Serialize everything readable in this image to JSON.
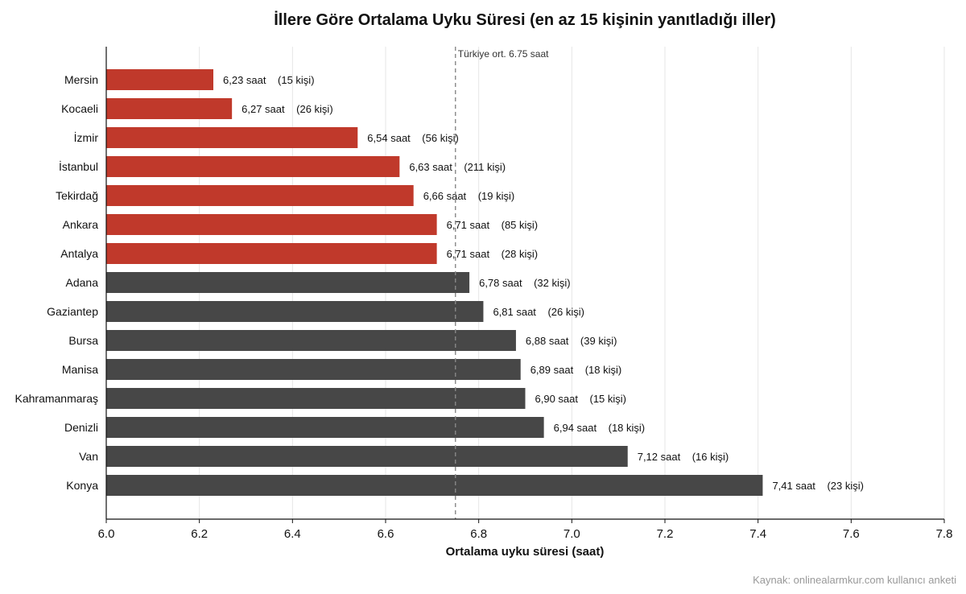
{
  "chart_data": {
    "type": "bar",
    "orientation": "horizontal",
    "title": "İllere Göre Ortalama Uyku Süresi  (en az 15 kişinin yanıtladığı iller)",
    "xlabel": "Ortalama uyku süresi (saat)",
    "ylabel": "",
    "xlim": [
      6.0,
      7.8
    ],
    "xticks": [
      "6.0",
      "6.2",
      "6.4",
      "6.6",
      "6.8",
      "7.0",
      "7.2",
      "7.4",
      "7.6",
      "7.8"
    ],
    "grid": true,
    "colors": {
      "below_avg": "#c0392b",
      "above_avg": "#474747",
      "reference_line": "#888888"
    },
    "reference_line": {
      "value": 6.75,
      "label": "Türkiye ort. 6.75 saat"
    },
    "bars": [
      {
        "category": "Mersin",
        "value": 6.23,
        "value_label": "6,23 saat",
        "count_label": "(15 kişi)",
        "group": "below_avg"
      },
      {
        "category": "Kocaeli",
        "value": 6.27,
        "value_label": "6,27 saat",
        "count_label": "(26 kişi)",
        "group": "below_avg"
      },
      {
        "category": "İzmir",
        "value": 6.54,
        "value_label": "6,54 saat",
        "count_label": "(56 kişi)",
        "group": "below_avg"
      },
      {
        "category": "İstanbul",
        "value": 6.63,
        "value_label": "6,63 saat",
        "count_label": "(211 kişi)",
        "group": "below_avg"
      },
      {
        "category": "Tekirdağ",
        "value": 6.66,
        "value_label": "6,66 saat",
        "count_label": "(19 kişi)",
        "group": "below_avg"
      },
      {
        "category": "Ankara",
        "value": 6.71,
        "value_label": "6,71 saat",
        "count_label": "(85 kişi)",
        "group": "below_avg"
      },
      {
        "category": "Antalya",
        "value": 6.71,
        "value_label": "6,71 saat",
        "count_label": "(28 kişi)",
        "group": "below_avg"
      },
      {
        "category": "Adana",
        "value": 6.78,
        "value_label": "6,78 saat",
        "count_label": "(32 kişi)",
        "group": "above_avg"
      },
      {
        "category": "Gaziantep",
        "value": 6.81,
        "value_label": "6,81 saat",
        "count_label": "(26 kişi)",
        "group": "above_avg"
      },
      {
        "category": "Bursa",
        "value": 6.88,
        "value_label": "6,88 saat",
        "count_label": "(39 kişi)",
        "group": "above_avg"
      },
      {
        "category": "Manisa",
        "value": 6.89,
        "value_label": "6,89 saat",
        "count_label": "(18 kişi)",
        "group": "above_avg"
      },
      {
        "category": "Kahramanmaraş",
        "value": 6.9,
        "value_label": "6,90 saat",
        "count_label": "(15 kişi)",
        "group": "above_avg"
      },
      {
        "category": "Denizli",
        "value": 6.94,
        "value_label": "6,94 saat",
        "count_label": "(18 kişi)",
        "group": "above_avg"
      },
      {
        "category": "Van",
        "value": 7.12,
        "value_label": "7,12 saat",
        "count_label": "(16 kişi)",
        "group": "above_avg"
      },
      {
        "category": "Konya",
        "value": 7.41,
        "value_label": "7,41 saat",
        "count_label": "(23 kişi)",
        "group": "above_avg"
      }
    ]
  },
  "source": "Kaynak: onlinealarmkur.com kullanıcı anketi"
}
